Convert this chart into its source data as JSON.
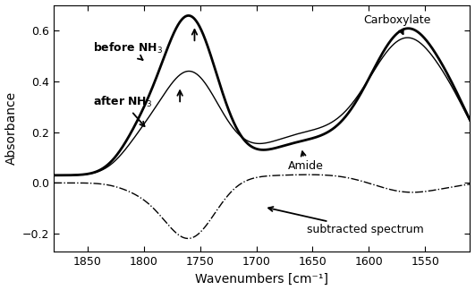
{
  "xlabel": "Wavenumbers [cm⁻¹]",
  "ylabel": "Absorbance",
  "xlim": [
    1880,
    1510
  ],
  "ylim": [
    -0.27,
    0.7
  ],
  "yticks": [
    -0.2,
    0.0,
    0.2,
    0.4,
    0.6
  ],
  "xticks": [
    1850,
    1800,
    1750,
    1700,
    1650,
    1600,
    1550
  ],
  "background_color": "#ffffff"
}
